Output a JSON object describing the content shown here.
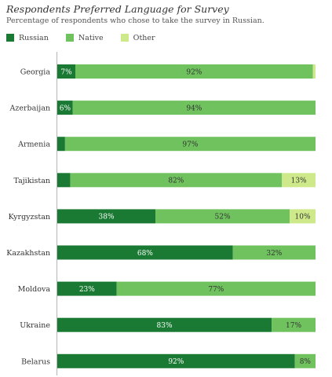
{
  "chart_data": {
    "type": "bar",
    "orientation": "horizontal",
    "stacked": true,
    "title": "Respondents Preferred Language for Survey",
    "subtitle": "Percentage of respondents who chose to take the survey in Russian.",
    "legend_position": "top-left",
    "grid": false,
    "xlim": [
      0,
      100
    ],
    "categories": [
      "Georgia",
      "Azerbaijan",
      "Armenia",
      "Tajikistan",
      "Kyrgyzstan",
      "Kazakhstan",
      "Moldova",
      "Ukraine",
      "Belarus"
    ],
    "series": [
      {
        "name": "Russian",
        "color": "#1a7a33",
        "label_color": "#ffffff",
        "values": [
          7,
          6,
          3,
          5,
          38,
          68,
          23,
          83,
          92
        ],
        "labels": [
          "7%",
          "6%",
          "",
          "",
          "38%",
          "68%",
          "23%",
          "83%",
          "92%"
        ]
      },
      {
        "name": "Native",
        "color": "#6fc25e",
        "label_color": "#333333",
        "values": [
          92,
          94,
          97,
          82,
          52,
          32,
          77,
          17,
          8
        ],
        "labels": [
          "92%",
          "94%",
          "97%",
          "82%",
          "52%",
          "32%",
          "77%",
          "17%",
          "8%"
        ]
      },
      {
        "name": "Other",
        "color": "#cde98a",
        "label_color": "#333333",
        "values": [
          1,
          0,
          0,
          13,
          10,
          0,
          0,
          0,
          0
        ],
        "labels": [
          "",
          "",
          "",
          "13%",
          "10%",
          "",
          "",
          "",
          ""
        ]
      }
    ]
  }
}
